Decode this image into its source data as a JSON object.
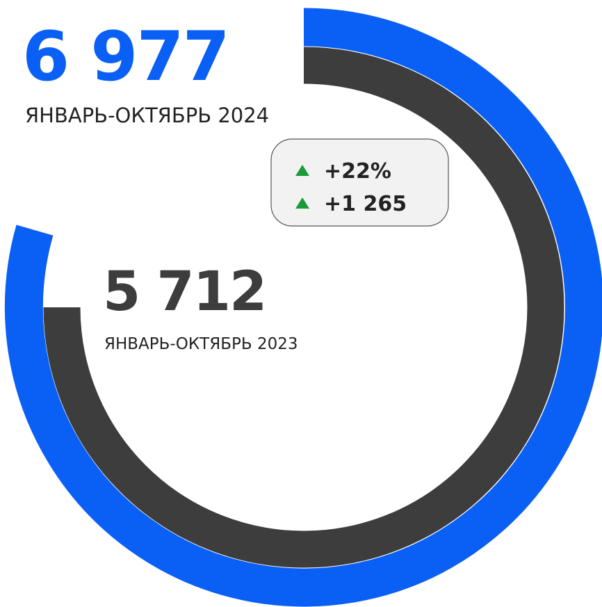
{
  "current": {
    "value": "6 977",
    "label": "ЯНВАРЬ-ОКТЯБРЬ 2024"
  },
  "previous": {
    "value": "5 712",
    "label": "ЯНВАРЬ-ОКТЯБРЬ 2023"
  },
  "changes": [
    "+22%",
    "+1 265"
  ]
}
